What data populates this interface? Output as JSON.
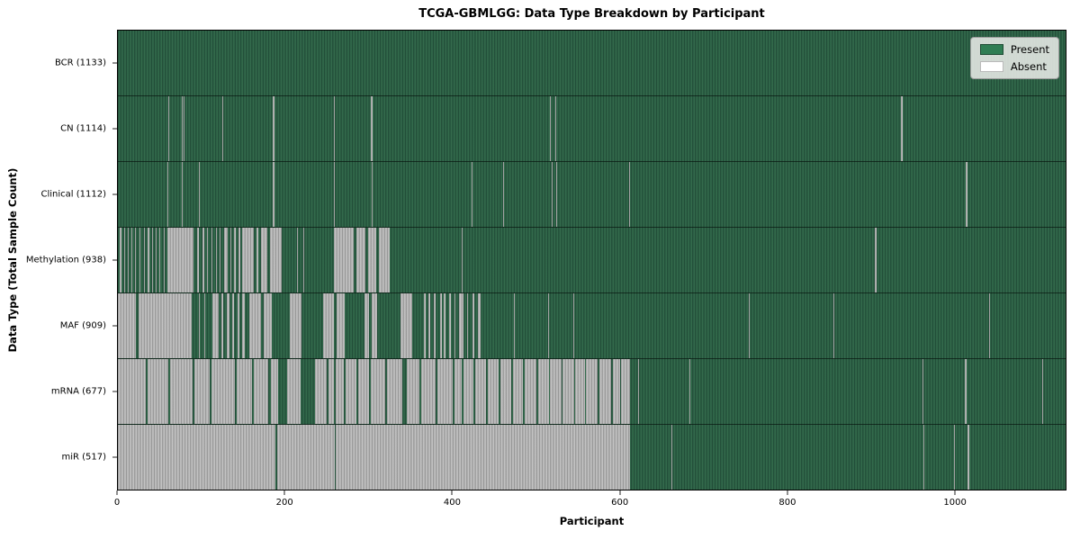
{
  "title": "TCGA-GBMLGG: Data Type Breakdown by Participant",
  "xlabel": "Participant",
  "ylabel": "Data Type (Total Sample Count)",
  "legend": {
    "present": "Present",
    "absent": "Absent"
  },
  "colors": {
    "present_green": "#2f7d53",
    "present_stripe_dark": "#1e4633",
    "absent_white": "#ffffff",
    "absent_fill_gray": "#aeaeae",
    "axis": "#000000",
    "legend_bg": "#e0e4e0"
  },
  "chart_data": {
    "type": "heatmap",
    "title": "TCGA-GBMLGG: Data Type Breakdown by Participant",
    "xlabel": "Participant",
    "ylabel": "Data Type (Total Sample Count)",
    "legend_entries": [
      "Present",
      "Absent"
    ],
    "legend_position": "upper right",
    "x_max": 1133,
    "x_ticks": [
      0,
      200,
      400,
      600,
      800,
      1000
    ],
    "rows": [
      {
        "name": "BCR",
        "label": "BCR (1133)",
        "total": 1133,
        "absent_ranges": []
      },
      {
        "name": "CN",
        "label": "CN (1114)",
        "total": 1114,
        "absent_ranges": [
          [
            60,
            61
          ],
          [
            76,
            77
          ],
          [
            79,
            80
          ],
          [
            106,
            107
          ],
          [
            125,
            126
          ],
          [
            185,
            187
          ],
          [
            258,
            259
          ],
          [
            302,
            304
          ],
          [
            516,
            518
          ],
          [
            523,
            524
          ],
          [
            936,
            938
          ]
        ]
      },
      {
        "name": "Clinical",
        "label": "Clinical (1112)",
        "total": 1112,
        "absent_ranges": [
          [
            59,
            60
          ],
          [
            76,
            77
          ],
          [
            97,
            98
          ],
          [
            185,
            187
          ],
          [
            258,
            259
          ],
          [
            303,
            305
          ],
          [
            423,
            424
          ],
          [
            461,
            462
          ],
          [
            519,
            520
          ],
          [
            524,
            525
          ],
          [
            611,
            612
          ],
          [
            1014,
            1016
          ]
        ]
      },
      {
        "name": "Methylation",
        "label": "Methylation (938)",
        "total": 938,
        "absent_ranges": [
          [
            2,
            4
          ],
          [
            7,
            9
          ],
          [
            12,
            13
          ],
          [
            16,
            17
          ],
          [
            20,
            22
          ],
          [
            26,
            27
          ],
          [
            31,
            32
          ],
          [
            36,
            38
          ],
          [
            41,
            42
          ],
          [
            45,
            46
          ],
          [
            50,
            51
          ],
          [
            55,
            56
          ],
          [
            59,
            90
          ],
          [
            95,
            97
          ],
          [
            101,
            103
          ],
          [
            107,
            108
          ],
          [
            112,
            113
          ],
          [
            117,
            118
          ],
          [
            122,
            123
          ],
          [
            127,
            131
          ],
          [
            134,
            136
          ],
          [
            139,
            141
          ],
          [
            144,
            146
          ],
          [
            149,
            163
          ],
          [
            166,
            168
          ],
          [
            171,
            179
          ],
          [
            182,
            196
          ],
          [
            214,
            215
          ],
          [
            222,
            223
          ],
          [
            258,
            282
          ],
          [
            285,
            296
          ],
          [
            299,
            309
          ],
          [
            312,
            325
          ],
          [
            411,
            412
          ],
          [
            905,
            907
          ]
        ]
      },
      {
        "name": "MAF",
        "label": "MAF (909)",
        "total": 909,
        "absent_ranges": [
          [
            0,
            22
          ],
          [
            25,
            88
          ],
          [
            92,
            93
          ],
          [
            97,
            98
          ],
          [
            103,
            104
          ],
          [
            113,
            120
          ],
          [
            124,
            126
          ],
          [
            130,
            133
          ],
          [
            137,
            139
          ],
          [
            143,
            145
          ],
          [
            149,
            152
          ],
          [
            157,
            171
          ],
          [
            174,
            184
          ],
          [
            206,
            219
          ],
          [
            245,
            258
          ],
          [
            261,
            271
          ],
          [
            276,
            277
          ],
          [
            295,
            300
          ],
          [
            303,
            310
          ],
          [
            338,
            352
          ],
          [
            366,
            368
          ],
          [
            371,
            373
          ],
          [
            378,
            380
          ],
          [
            385,
            387
          ],
          [
            390,
            392
          ],
          [
            396,
            398
          ],
          [
            402,
            404
          ],
          [
            408,
            413
          ],
          [
            417,
            419
          ],
          [
            424,
            426
          ],
          [
            430,
            434
          ],
          [
            473,
            474
          ],
          [
            514,
            515
          ],
          [
            544,
            545
          ],
          [
            754,
            755
          ],
          [
            855,
            856
          ],
          [
            1042,
            1043
          ]
        ]
      },
      {
        "name": "mRNA",
        "label": "mRNA (677)",
        "total": 677,
        "absent_ranges": [
          [
            0,
            33
          ],
          [
            35,
            60
          ],
          [
            62,
            89
          ],
          [
            91,
            110
          ],
          [
            112,
            140
          ],
          [
            142,
            160
          ],
          [
            163,
            180
          ],
          [
            183,
            191
          ],
          [
            202,
            218
          ],
          [
            236,
            250
          ],
          [
            252,
            258
          ],
          [
            260,
            270
          ],
          [
            272,
            285
          ],
          [
            287,
            300
          ],
          [
            302,
            320
          ],
          [
            322,
            340
          ],
          [
            345,
            360
          ],
          [
            363,
            380
          ],
          [
            382,
            400
          ],
          [
            402,
            411
          ],
          [
            413,
            425
          ],
          [
            427,
            440
          ],
          [
            442,
            455
          ],
          [
            457,
            470
          ],
          [
            472,
            484
          ],
          [
            486,
            500
          ],
          [
            502,
            515
          ],
          [
            517,
            530
          ],
          [
            532,
            545
          ],
          [
            547,
            558
          ],
          [
            560,
            574
          ],
          [
            576,
            590
          ],
          [
            592,
            600
          ],
          [
            602,
            612
          ],
          [
            622,
            623
          ],
          [
            683,
            684
          ],
          [
            962,
            963
          ],
          [
            1013,
            1015
          ],
          [
            1105,
            1106
          ]
        ]
      },
      {
        "name": "miR",
        "label": "miR (517)",
        "total": 517,
        "absent_ranges": [
          [
            0,
            188
          ],
          [
            190,
            259
          ],
          [
            260,
            612
          ],
          [
            662,
            663
          ],
          [
            715,
            716
          ],
          [
            941,
            942
          ],
          [
            963,
            964
          ],
          [
            1000,
            1001
          ],
          [
            1016,
            1018
          ]
        ]
      }
    ]
  }
}
